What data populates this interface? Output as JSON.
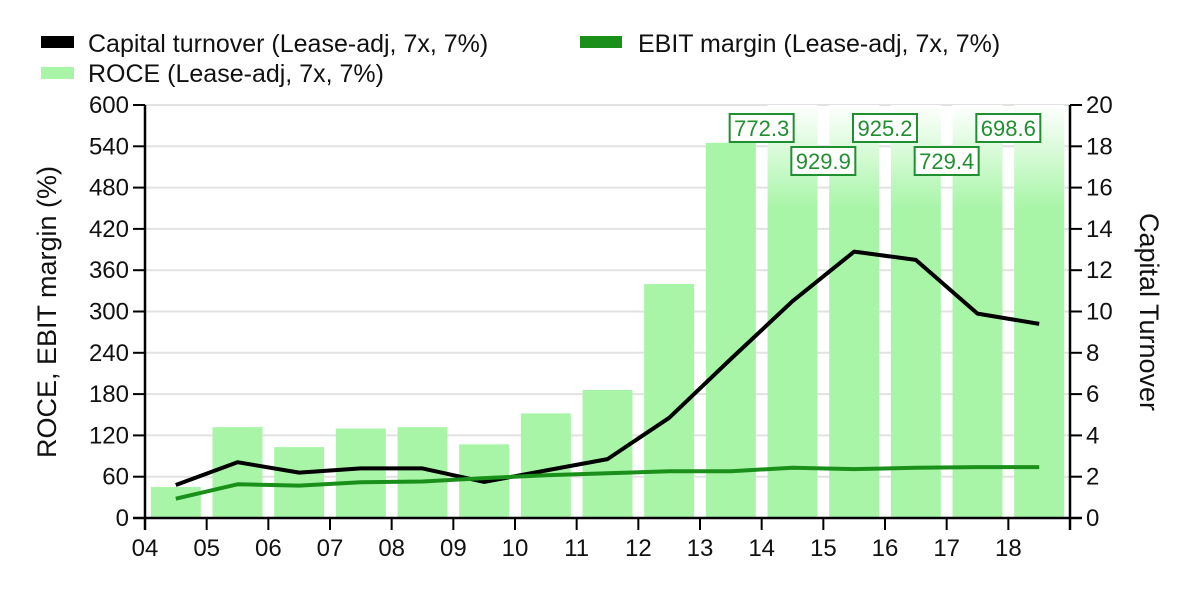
{
  "chart_data": {
    "type": "bar",
    "title": "",
    "xlabel": "",
    "ylabel": "ROCE, EBIT margin (%)",
    "y2label": "Capital Turnover",
    "ylim": [
      0,
      600
    ],
    "y2lim": [
      0,
      20
    ],
    "yticks": [
      0,
      60,
      120,
      180,
      240,
      300,
      360,
      420,
      480,
      540,
      600
    ],
    "y2ticks": [
      0,
      2,
      4,
      6,
      8,
      10,
      12,
      14,
      16,
      18,
      20
    ],
    "x_ticks": [
      "04",
      "05",
      "06",
      "07",
      "08",
      "09",
      "10",
      "11",
      "12",
      "13",
      "14",
      "15",
      "16",
      "17",
      "18"
    ],
    "grid": true,
    "legend_position": "top",
    "categories": [
      "04",
      "05",
      "06",
      "07",
      "08",
      "09",
      "10",
      "11",
      "12",
      "13",
      "14",
      "15",
      "16",
      "17",
      "18"
    ],
    "series": [
      {
        "name": "ROCE (Lease-adj, 7x, 7%)",
        "type": "bar",
        "axis": "left",
        "color": "#a8f5a8",
        "values": [
          45,
          132,
          103,
          130,
          132,
          107,
          152,
          186,
          340,
          545,
          772.3,
          929.9,
          925.2,
          729.4,
          698.6
        ]
      },
      {
        "name": "Capital turnover (Lease-adj, 7x, 7%)",
        "type": "line",
        "axis": "right",
        "color": "#000000",
        "values": [
          1.6,
          2.7,
          2.2,
          2.4,
          2.4,
          1.75,
          2.3,
          2.85,
          4.85,
          7.7,
          10.5,
          12.9,
          12.5,
          9.9,
          9.4
        ]
      },
      {
        "name": "EBIT margin (Lease-adj, 7x, 7%)",
        "type": "line",
        "axis": "left",
        "color": "#1a8f1a",
        "values": [
          28,
          49,
          47,
          52,
          53,
          58,
          62,
          65,
          68,
          68,
          73,
          71,
          73,
          74,
          74
        ]
      }
    ],
    "overflow_labels": [
      {
        "category": "14",
        "text": "772.3"
      },
      {
        "category": "15",
        "text": "929.9"
      },
      {
        "category": "16",
        "text": "925.2"
      },
      {
        "category": "17",
        "text": "729.4"
      },
      {
        "category": "18",
        "text": "698.6"
      }
    ],
    "legend": [
      {
        "label": "Capital turnover (Lease-adj, 7x, 7%)",
        "color": "#000000"
      },
      {
        "label": "EBIT margin (Lease-adj, 7x, 7%)",
        "color": "#1a8f1a"
      },
      {
        "label": "ROCE (Lease-adj, 7x, 7%)",
        "color": "#a8f5a8"
      }
    ],
    "overflow_label_color": "#1f8f2f",
    "grid_color": "#e2e2e2"
  }
}
